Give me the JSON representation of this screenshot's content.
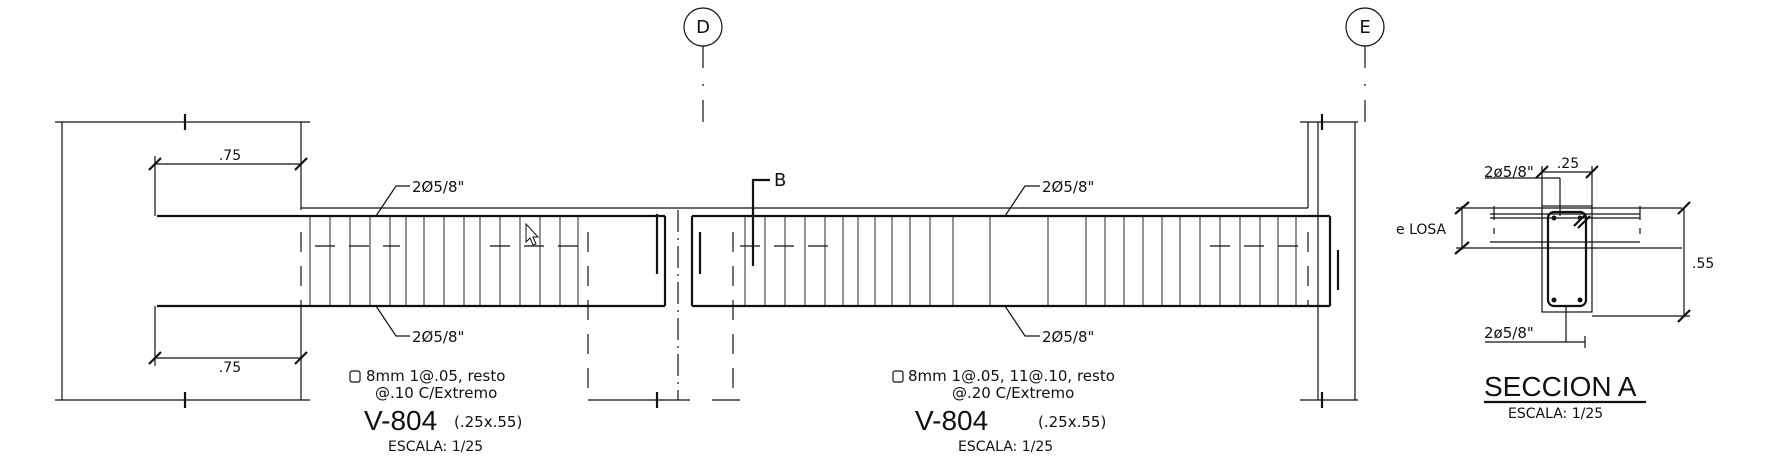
{
  "grid_axes": {
    "left": "D",
    "right": "E"
  },
  "beam_left": {
    "top_rebar": "2Ø5/8\"",
    "bottom_rebar": "2Ø5/8\"",
    "dim_top": ".75",
    "dim_bottom": ".75",
    "stirrup_line1": "8mm  1@.05,  resto",
    "stirrup_line2": "@.10  C/Extremo",
    "name": "V-804",
    "size": "(.25x.55)",
    "scale": "ESCALA:  1/25"
  },
  "beam_right": {
    "section_mark": "B",
    "top_rebar": "2Ø5/8\"",
    "bottom_rebar": "2Ø5/8\"",
    "stirrup_line1": "8mm  1@.05,  11@.10,  resto",
    "stirrup_line2": "@.20  C/Extremo",
    "name": "V-804",
    "size": "(.25x.55)",
    "scale": "ESCALA:  1/25"
  },
  "section": {
    "top_rebar": "2ø5/8\"",
    "bottom_rebar": "2ø5/8\"",
    "width": ".25",
    "height": ".55",
    "slab_label": "e  LOSA",
    "title": "SECCION A",
    "scale": "ESCALA:  1/25"
  }
}
